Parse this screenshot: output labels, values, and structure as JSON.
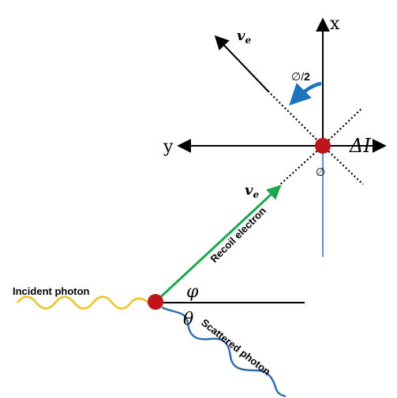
{
  "diagram": {
    "labels": {
      "x_axis": "x",
      "y_axis": "y",
      "delta_i": "ΔI",
      "v_e_top": "v",
      "v_e_top_sub": "e",
      "v_e_mid": "v",
      "v_e_mid_sub": "e",
      "phi_half": "∅/",
      "phi_half_num": "2",
      "phi_small": "∅",
      "phi_angle": "φ",
      "theta_angle": "θ",
      "incident_photon": "Incident photon",
      "recoil_electron": "Recoil electron",
      "scattered_photon": "Scattered photon"
    },
    "colors": {
      "incident_photon": "#f2c01c",
      "scattered_photon": "#2e6aa8",
      "recoil_electron": "#1aa64b",
      "particle": "#c0141b",
      "angle_arrow": "#1e73be",
      "axis": "#000000",
      "vertical_line": "#3a73c4"
    }
  }
}
